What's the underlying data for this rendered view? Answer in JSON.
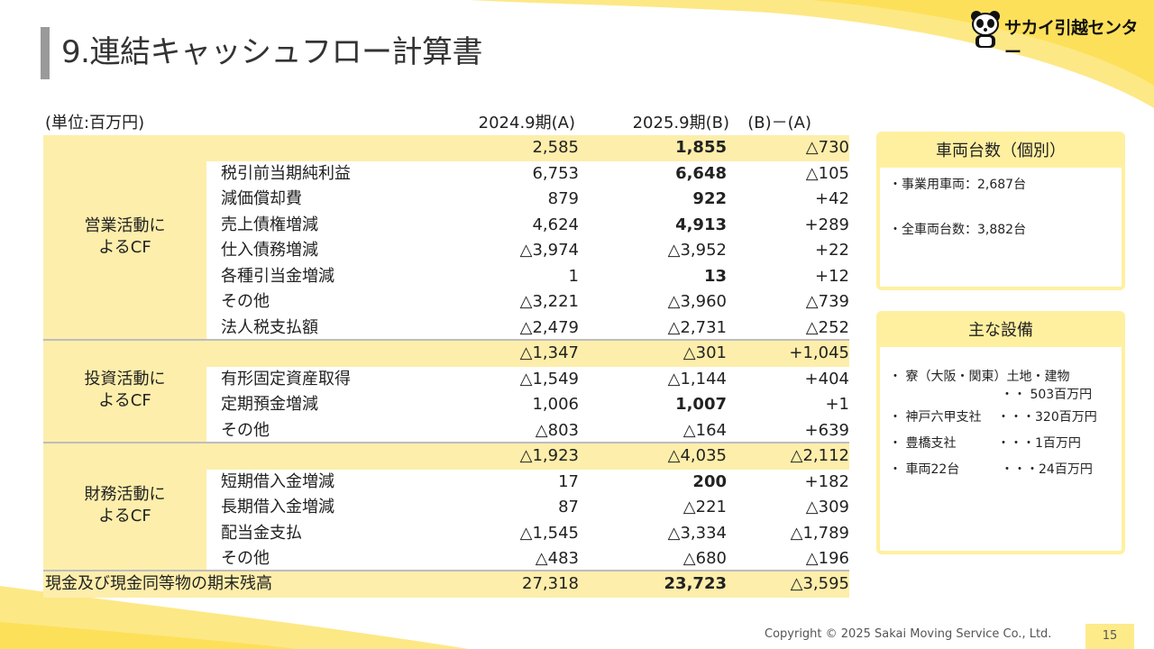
{
  "header": {
    "title": "9.連結キャッシュフロー計算書",
    "brand_name": "サカイ引越センター"
  },
  "table": {
    "unit": "(単位:百万円)",
    "col_a": "2024.9期(A)",
    "col_b": "2025.9期(B)",
    "col_diff": "(B)－(A)",
    "sections": [
      {
        "label_line1": "営業活動に",
        "label_line2": "よるCF",
        "total": {
          "a": "2,585",
          "b": "1,855",
          "diff": "△730"
        },
        "rows": [
          {
            "label": "税引前当期純利益",
            "a": "6,753",
            "b": "6,648",
            "diff": "△105"
          },
          {
            "label": "減価償却費",
            "a": "879",
            "b": "922",
            "diff": "+42"
          },
          {
            "label": "売上債権増減",
            "a": "4,624",
            "b": "4,913",
            "diff": "+289"
          },
          {
            "label": "仕入債務増減",
            "a": "△3,974",
            "b": "△3,952",
            "diff": "+22"
          },
          {
            "label": "各種引当金増減",
            "a": "1",
            "b": "13",
            "diff": "+12"
          },
          {
            "label": "その他",
            "a": "△3,221",
            "b": "△3,960",
            "diff": "△739"
          },
          {
            "label": "法人税支払額",
            "a": "△2,479",
            "b": "△2,731",
            "diff": "△252"
          }
        ]
      },
      {
        "label_line1": "投資活動に",
        "label_line2": "よるCF",
        "total": {
          "a": "△1,347",
          "b": "△301",
          "diff": "+1,045"
        },
        "rows": [
          {
            "label": "有形固定資産取得",
            "a": "△1,549",
            "b": "△1,144",
            "diff": "+404"
          },
          {
            "label": "定期預金増減",
            "a": "1,006",
            "b": "1,007",
            "diff": "+1"
          },
          {
            "label": "その他",
            "a": "△803",
            "b": "△164",
            "diff": "+639"
          }
        ]
      },
      {
        "label_line1": "財務活動に",
        "label_line2": "よるCF",
        "total": {
          "a": "△1,923",
          "b": "△4,035",
          "diff": "△2,112"
        },
        "rows": [
          {
            "label": "短期借入金増減",
            "a": "17",
            "b": "200",
            "diff": "+182"
          },
          {
            "label": "長期借入金増減",
            "a": "87",
            "b": "△221",
            "diff": "△309"
          },
          {
            "label": "配当金支払",
            "a": "△1,545",
            "b": "△3,334",
            "diff": "△1,789"
          },
          {
            "label": "その他",
            "a": "△483",
            "b": "△680",
            "diff": "△196"
          }
        ]
      }
    ],
    "ending": {
      "label": "現金及び現金同等物の期末残高",
      "a": "27,318",
      "b": "23,723",
      "diff": "△3,595"
    }
  },
  "vehicles": {
    "title": "車両台数（個別）",
    "line1": "・事業用車両：2,687台",
    "line2": "・全車両台数：3,882台"
  },
  "facilities": {
    "title": "主な設備",
    "item1": "・ 寮（大阪・関東）土地・建物",
    "item1_value": "・・ 503百万円",
    "item2": "・ 神戸六甲支社",
    "item2_value": "・・・320百万円",
    "item3": "・ 豊橋支社",
    "item3_value": "・・・1百万円",
    "item4": "・ 車両22台",
    "item4_value": "・・・24百万円"
  },
  "footer": {
    "copyright": "Copyright © 2025 Sakai Moving Service Co., Ltd.",
    "page": "15"
  }
}
